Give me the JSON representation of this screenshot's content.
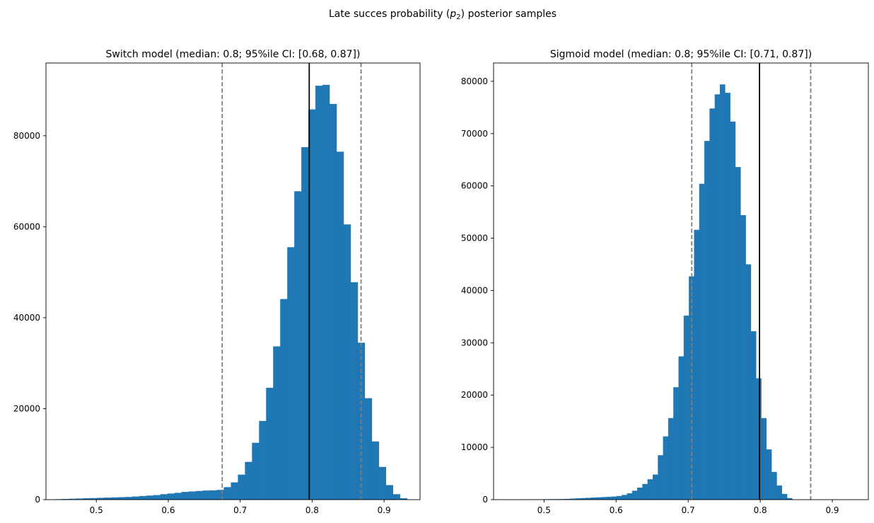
{
  "figure": {
    "suptitle_prefix": "Late succes probability (",
    "suptitle_var": "p",
    "suptitle_sub": "2",
    "suptitle_suffix": ") posterior samples"
  },
  "chart_data": [
    {
      "type": "bar",
      "subtype": "histogram",
      "title": "Switch model (median: 0.8; 95%ile CI: [0.68, 0.87])",
      "xlim": [
        0.43,
        0.95
      ],
      "ylim": [
        0,
        96000
      ],
      "xticks": [
        0.5,
        0.6,
        0.7,
        0.8,
        0.9
      ],
      "xtick_labels": [
        "0.5",
        "0.6",
        "0.7",
        "0.8",
        "0.9"
      ],
      "yticks": [
        0,
        20000,
        40000,
        60000,
        80000
      ],
      "ytick_labels": [
        "0",
        "20000",
        "40000",
        "60000",
        "80000"
      ],
      "bin_start": 0.442,
      "bin_width": 0.0098,
      "values": [
        100,
        150,
        200,
        250,
        300,
        350,
        400,
        450,
        500,
        550,
        600,
        700,
        800,
        900,
        1000,
        1200,
        1350,
        1500,
        1700,
        1800,
        1900,
        2000,
        2050,
        2150,
        2750,
        3800,
        5500,
        8300,
        12500,
        17300,
        24600,
        33700,
        44100,
        55500,
        67800,
        77500,
        85800,
        91000,
        91200,
        87000,
        76500,
        60500,
        47800,
        34500,
        22300,
        12800,
        7200,
        3200,
        1200,
        300
      ],
      "median": 0.796,
      "ci": [
        0.675,
        0.868
      ],
      "bar_color": "#1f77b4",
      "median_color": "#000000",
      "ci_color": "#7f7f7f"
    },
    {
      "type": "bar",
      "subtype": "histogram",
      "title": "Sigmoid model (median: 0.8; 95%ile CI: [0.71, 0.87])",
      "xlim": [
        0.43,
        0.95
      ],
      "ylim": [
        0,
        83500
      ],
      "xticks": [
        0.5,
        0.6,
        0.7,
        0.8,
        0.9
      ],
      "xtick_labels": [
        "0.5",
        "0.6",
        "0.7",
        "0.8",
        "0.9"
      ],
      "yticks": [
        0,
        10000,
        20000,
        30000,
        40000,
        50000,
        60000,
        70000,
        80000
      ],
      "ytick_labels": [
        "0",
        "10000",
        "20000",
        "30000",
        "40000",
        "50000",
        "60000",
        "70000",
        "80000"
      ],
      "bin_start": 0.45,
      "bin_width": 0.00717,
      "values": [
        20,
        30,
        40,
        50,
        60,
        70,
        80,
        90,
        100,
        110,
        120,
        150,
        200,
        250,
        300,
        350,
        400,
        450,
        500,
        550,
        600,
        700,
        900,
        1200,
        1700,
        2300,
        3000,
        3900,
        4800,
        8500,
        12100,
        15600,
        21500,
        27400,
        35200,
        42700,
        51600,
        60400,
        68600,
        74800,
        77500,
        79400,
        77800,
        72300,
        63600,
        54400,
        45000,
        32200,
        23200,
        15600,
        9600,
        5300,
        2700,
        1100,
        300
      ],
      "median": 0.799,
      "ci": [
        0.705,
        0.87
      ],
      "bar_color": "#1f77b4",
      "median_color": "#000000",
      "ci_color": "#7f7f7f"
    }
  ]
}
